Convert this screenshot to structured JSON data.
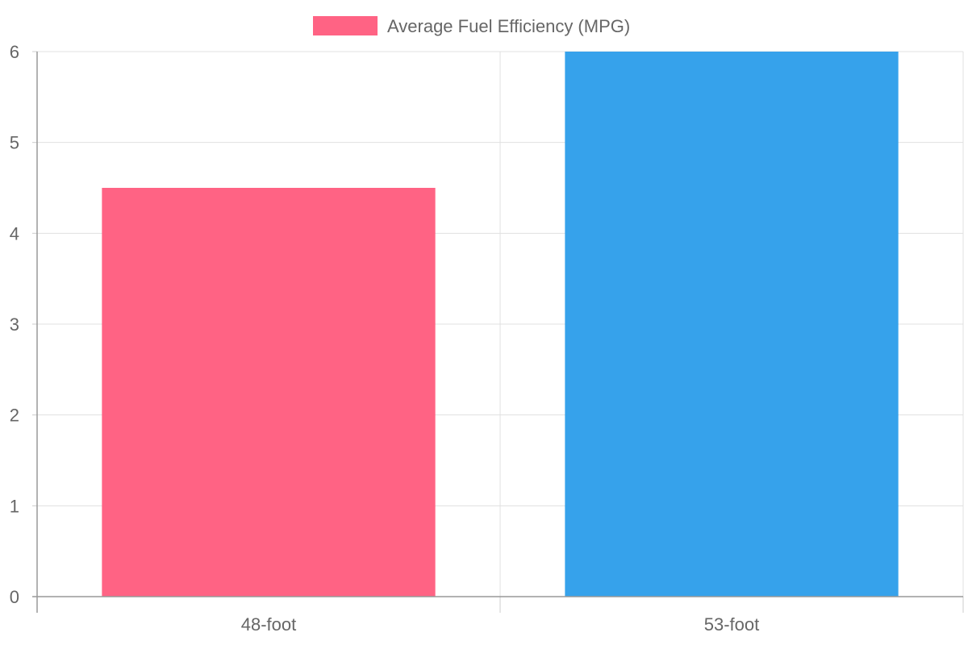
{
  "chart_data": {
    "type": "bar",
    "categories": [
      "48-foot",
      "53-foot"
    ],
    "series": [
      {
        "name": "Average Fuel Efficiency (MPG)",
        "values": [
          4.5,
          6.0
        ],
        "colors": [
          "#ff6384",
          "#36a2eb"
        ]
      }
    ],
    "ylim": [
      0,
      6
    ],
    "yticks": [
      "0",
      "1",
      "2",
      "3",
      "4",
      "5",
      "6"
    ],
    "grid": true,
    "legend_position": "top-center",
    "legend_color": "#ff6384"
  }
}
